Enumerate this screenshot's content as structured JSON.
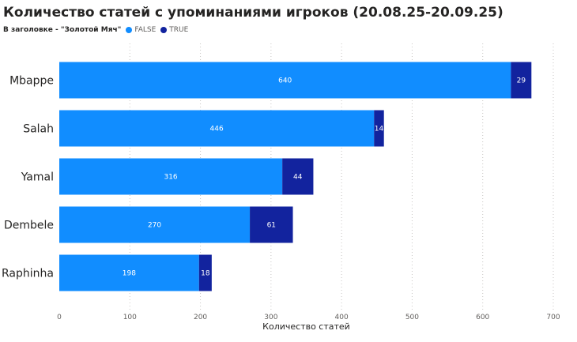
{
  "chart_data": {
    "type": "bar",
    "orientation": "horizontal",
    "stacked": true,
    "title": "Количество статей с упоминаниями игроков (20.08.25-20.09.25)",
    "legend_title": "В заголовке - \"Золотой Мяч\"",
    "legend_position": "top-left",
    "categories": [
      "Mbappe",
      "Salah",
      "Yamal",
      "Dembele",
      "Raphinha"
    ],
    "series": [
      {
        "name": "FALSE",
        "color": "#118DFF",
        "values": [
          640,
          446,
          316,
          270,
          198
        ]
      },
      {
        "name": "TRUE",
        "color": "#12239E",
        "values": [
          29,
          14,
          44,
          61,
          18
        ]
      }
    ],
    "xlabel": "Количество статей",
    "ylabel": "",
    "xlim": [
      0,
      700
    ],
    "xticks": [
      0,
      100,
      200,
      300,
      400,
      500,
      600,
      700
    ],
    "grid": true
  }
}
